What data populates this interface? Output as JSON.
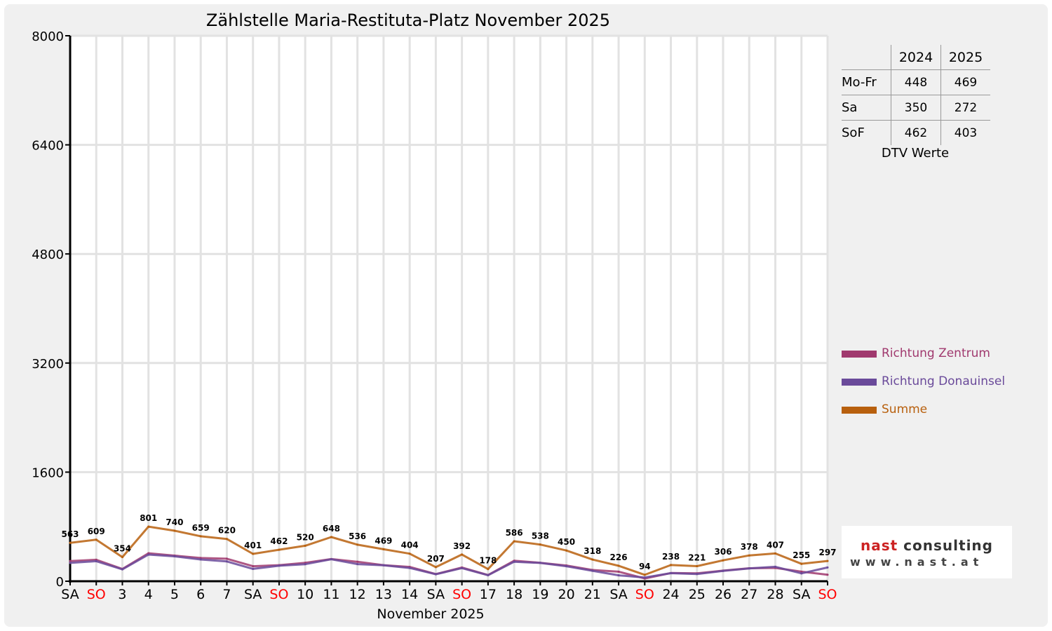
{
  "chart_data": {
    "type": "line",
    "title": "Zählstelle Maria-Restituta-Platz November 2025",
    "xlabel": "November 2025",
    "ylabel": "",
    "ylim": [
      0,
      8000
    ],
    "yticks": [
      "0",
      "1600",
      "3200",
      "4800",
      "6400",
      "8000"
    ],
    "grid": true,
    "legend_position": "right",
    "categories": [
      "SA",
      "SO",
      "3",
      "4",
      "5",
      "6",
      "7",
      "SA",
      "SO",
      "10",
      "11",
      "12",
      "13",
      "14",
      "SA",
      "SO",
      "17",
      "18",
      "19",
      "20",
      "21",
      "SA",
      "SO",
      "24",
      "25",
      "26",
      "27",
      "28",
      "SA",
      "SO"
    ],
    "weekend_categories_color": "#ff0000",
    "normal_category_color": "#000000",
    "series": [
      {
        "name": "Richtung Zentrum",
        "color": "#a0396e",
        "values": [
          295,
          315,
          180,
          410,
          375,
          340,
          330,
          220,
          235,
          270,
          325,
          285,
          235,
          210,
          105,
          200,
          90,
          300,
          270,
          230,
          165,
          140,
          40,
          120,
          115,
          155,
          190,
          195,
          140,
          95
        ]
      },
      {
        "name": "Richtung Donauinsel",
        "color": "#6a4a9a",
        "values": [
          268,
          294,
          174,
          391,
          365,
          319,
          290,
          181,
          227,
          250,
          323,
          251,
          234,
          194,
          102,
          192,
          88,
          286,
          268,
          220,
          153,
          86,
          54,
          118,
          106,
          151,
          188,
          212,
          115,
          202
        ]
      },
      {
        "name": "Summe",
        "color": "#b8600e",
        "values": [
          563,
          609,
          354,
          801,
          740,
          659,
          620,
          401,
          462,
          520,
          648,
          536,
          469,
          404,
          207,
          392,
          178,
          586,
          538,
          450,
          318,
          226,
          94,
          238,
          221,
          306,
          378,
          407,
          255,
          297
        ],
        "data_labels": [
          "563",
          "609",
          "354",
          "801",
          "740",
          "659",
          "620",
          "401",
          "462",
          "520",
          "648",
          "536",
          "469",
          "404",
          "207",
          "392",
          "178",
          "586",
          "538",
          "450",
          "318",
          "226",
          "94",
          "238",
          "221",
          "306",
          "378",
          "407",
          "255",
          "297"
        ]
      }
    ]
  },
  "dtv": {
    "years": [
      "2024",
      "2025"
    ],
    "rows": [
      {
        "label": "Mo-Fr",
        "v2024": "448",
        "v2025": "469"
      },
      {
        "label": "Sa",
        "v2024": "350",
        "v2025": "272"
      },
      {
        "label": "SoF",
        "v2024": "462",
        "v2025": "403"
      }
    ],
    "caption": "DTV Werte"
  },
  "logo": {
    "brand_a": "nast",
    "brand_b": "consulting",
    "url": "www.nast.at",
    "color_a": "#cc2222",
    "color_b": "#333333"
  }
}
